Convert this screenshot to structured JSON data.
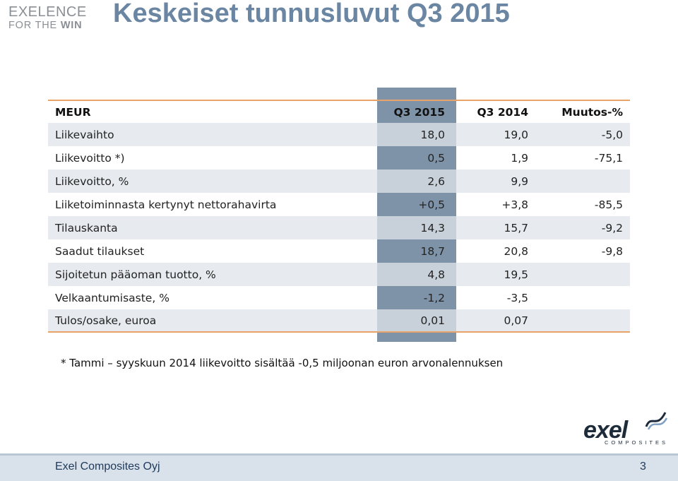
{
  "brand": {
    "line1": "EXELENCE",
    "line2_pre": "FOR THE ",
    "line2_bold": "WIN"
  },
  "title": "Keskeiset tunnusluvut Q3 2015",
  "table": {
    "headers": [
      "MEUR",
      "Q3 2015",
      "Q3 2014",
      "Muutos-%"
    ],
    "rows": [
      [
        "Liikevaihto",
        "18,0",
        "19,0",
        "-5,0"
      ],
      [
        "Liikevoitto *)",
        "0,5",
        "1,9",
        "-75,1"
      ],
      [
        "Liikevoitto, %",
        "2,6",
        "9,9",
        ""
      ],
      [
        "Liiketoiminnasta kertynyt nettorahavirta",
        "+0,5",
        "+3,8",
        "-85,5"
      ],
      [
        "Tilauskanta",
        "14,3",
        "15,7",
        "-9,2"
      ],
      [
        "Saadut tilaukset",
        "18,7",
        "20,8",
        "-9,8"
      ],
      [
        "Sijoitetun pääoman tuotto, %",
        "4,8",
        "19,5",
        ""
      ],
      [
        "Velkaantumisaste, %",
        "-1,2",
        "-3,5",
        ""
      ],
      [
        "Tulos/osake, euroa",
        "0,01",
        "0,07",
        ""
      ]
    ]
  },
  "footnote": "* Tammi – syyskuun 2014 liikevoitto sisältää -0,5 miljoonan euron arvonalennuksen",
  "logo": {
    "word": "exel",
    "sub": "COMPOSITES"
  },
  "footer": {
    "company": "Exel Composites Oyj",
    "page": "3"
  },
  "colors": {
    "title": "#6b86a3",
    "highlight_column": "#7f93a8",
    "row_shade": "#e7ebef",
    "rule": "#e8a36a",
    "footer_bg": "#d9e1ea"
  }
}
